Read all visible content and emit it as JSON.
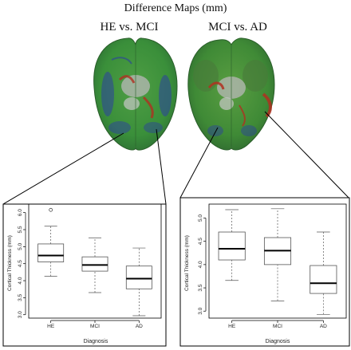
{
  "main_title": "Difference Maps (mm)",
  "brain_titles": [
    "HE vs. MCI",
    "MCI vs. AD"
  ],
  "colors": {
    "cortex_green": "#3a8f3a",
    "cortex_blue": "#2b3fa0",
    "cortex_red": "#b03020",
    "cortex_gray": "#b8b8b8",
    "box_line": "#555555",
    "median_line": "#000000"
  },
  "chart_data": [
    {
      "type": "boxplot",
      "title": "",
      "xlabel": "Diagnosis",
      "ylabel": "Cortical Thickness (mm)",
      "categories": [
        "HE",
        "MCI",
        "AD"
      ],
      "ylim": [
        2.9,
        6.25
      ],
      "yticks": [
        "3.0",
        "3.5",
        "4.0",
        "4.5",
        "5.0",
        "5.5",
        "6.0"
      ],
      "ytick_values": [
        3.0,
        3.5,
        4.0,
        4.5,
        5.0,
        5.5,
        6.0
      ],
      "boxes": [
        {
          "category": "HE",
          "whisker_low": 4.13,
          "q1": 4.55,
          "median": 4.74,
          "q3": 5.08,
          "whisker_high": 5.6,
          "outliers": [
            6.08
          ]
        },
        {
          "category": "MCI",
          "whisker_low": 3.65,
          "q1": 4.28,
          "median": 4.46,
          "q3": 4.7,
          "whisker_high": 5.26,
          "outliers": []
        },
        {
          "category": "AD",
          "whisker_low": 2.97,
          "q1": 3.76,
          "median": 4.06,
          "q3": 4.43,
          "whisker_high": 4.96,
          "outliers": []
        }
      ]
    },
    {
      "type": "boxplot",
      "title": "",
      "xlabel": "Diagnosis",
      "ylabel": "Cortical Thickness (mm)",
      "categories": [
        "HE",
        "MCI",
        "AD"
      ],
      "ylim": [
        2.85,
        5.3
      ],
      "yticks": [
        "3.0",
        "3.5",
        "4.0",
        "4.5",
        "5.0"
      ],
      "ytick_values": [
        3.0,
        3.5,
        4.0,
        4.5,
        5.0
      ],
      "boxes": [
        {
          "category": "HE",
          "whisker_low": 3.66,
          "q1": 4.1,
          "median": 4.34,
          "q3": 4.7,
          "whisker_high": 5.18,
          "outliers": []
        },
        {
          "category": "MCI",
          "whisker_low": 3.22,
          "q1": 4.0,
          "median": 4.3,
          "q3": 4.58,
          "whisker_high": 5.2,
          "outliers": []
        },
        {
          "category": "AD",
          "whisker_low": 2.93,
          "q1": 3.38,
          "median": 3.6,
          "q3": 3.98,
          "whisker_high": 4.7,
          "outliers": []
        }
      ]
    }
  ]
}
